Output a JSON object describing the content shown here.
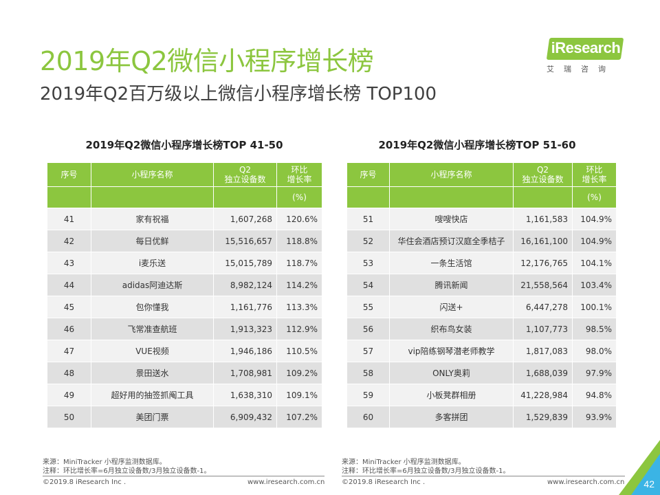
{
  "title": "2019年Q2微信小程序增长榜",
  "subtitle": "2019年Q2百万级以上微信小程序增长榜 TOP100",
  "logo": {
    "brand": "iResearch",
    "tagline": "艾瑞咨询"
  },
  "colors": {
    "accent": "#8cc63f",
    "row_light": "#f2f2f2",
    "row_dark": "#e0e0e0"
  },
  "headers": {
    "rank": "序号",
    "name": "小程序名称",
    "devices_line1": "Q2",
    "devices_line2": "独立设备数",
    "growth_line1": "环比",
    "growth_line2": "增长率",
    "unit": "(%)"
  },
  "left_table": {
    "heading": "2019年Q2微信小程序增长榜TOP 41-50",
    "rows": [
      {
        "rank": "41",
        "name": "家有祝福",
        "devices": "1,607,268",
        "growth": "120.6%"
      },
      {
        "rank": "42",
        "name": "每日优鲜",
        "devices": "15,516,657",
        "growth": "118.8%"
      },
      {
        "rank": "43",
        "name": "i麦乐送",
        "devices": "15,015,789",
        "growth": "118.7%"
      },
      {
        "rank": "44",
        "name": "adidas阿迪达斯",
        "devices": "8,982,124",
        "growth": "114.2%"
      },
      {
        "rank": "45",
        "name": "包你懂我",
        "devices": "1,161,776",
        "growth": "113.3%"
      },
      {
        "rank": "46",
        "name": "飞常准查航班",
        "devices": "1,913,323",
        "growth": "112.9%"
      },
      {
        "rank": "47",
        "name": "VUE视频",
        "devices": "1,946,186",
        "growth": "110.5%"
      },
      {
        "rank": "48",
        "name": "景田送水",
        "devices": "1,708,981",
        "growth": "109.2%"
      },
      {
        "rank": "49",
        "name": "超好用的抽签抓阄工具",
        "devices": "1,638,310",
        "growth": "109.1%"
      },
      {
        "rank": "50",
        "name": "美团门票",
        "devices": "6,909,432",
        "growth": "107.2%"
      }
    ]
  },
  "right_table": {
    "heading": "2019年Q2微信小程序增长榜TOP 51-60",
    "rows": [
      {
        "rank": "51",
        "name": "嗖嗖快店",
        "devices": "1,161,583",
        "growth": "104.9%"
      },
      {
        "rank": "52",
        "name": "华住会酒店预订汉庭全季桔子",
        "devices": "16,161,100",
        "growth": "104.9%"
      },
      {
        "rank": "53",
        "name": "一条生活馆",
        "devices": "12,176,765",
        "growth": "104.1%"
      },
      {
        "rank": "54",
        "name": "腾讯新闻",
        "devices": "21,558,564",
        "growth": "103.4%"
      },
      {
        "rank": "55",
        "name": "闪送+",
        "devices": "6,447,278",
        "growth": "100.1%"
      },
      {
        "rank": "56",
        "name": "织布鸟女装",
        "devices": "1,107,773",
        "growth": "98.5%"
      },
      {
        "rank": "57",
        "name": "vip陪练钢琴潜老师教学",
        "devices": "1,817,083",
        "growth": "98.0%"
      },
      {
        "rank": "58",
        "name": "ONLY奥莉",
        "devices": "1,688,039",
        "growth": "97.9%"
      },
      {
        "rank": "59",
        "name": "小板凳群相册",
        "devices": "41,228,984",
        "growth": "94.8%"
      },
      {
        "rank": "60",
        "name": "多客拼团",
        "devices": "1,529,839",
        "growth": "93.9%"
      }
    ]
  },
  "footer": {
    "source": "来源：MiniTracker 小程序监测数据库。",
    "note": "注释：环比增长率=6月独立设备数/3月独立设备数-1。",
    "copyright": "©2019.8 iResearch Inc .",
    "website": "www.iresearch.com.cn",
    "page_number": "42"
  }
}
